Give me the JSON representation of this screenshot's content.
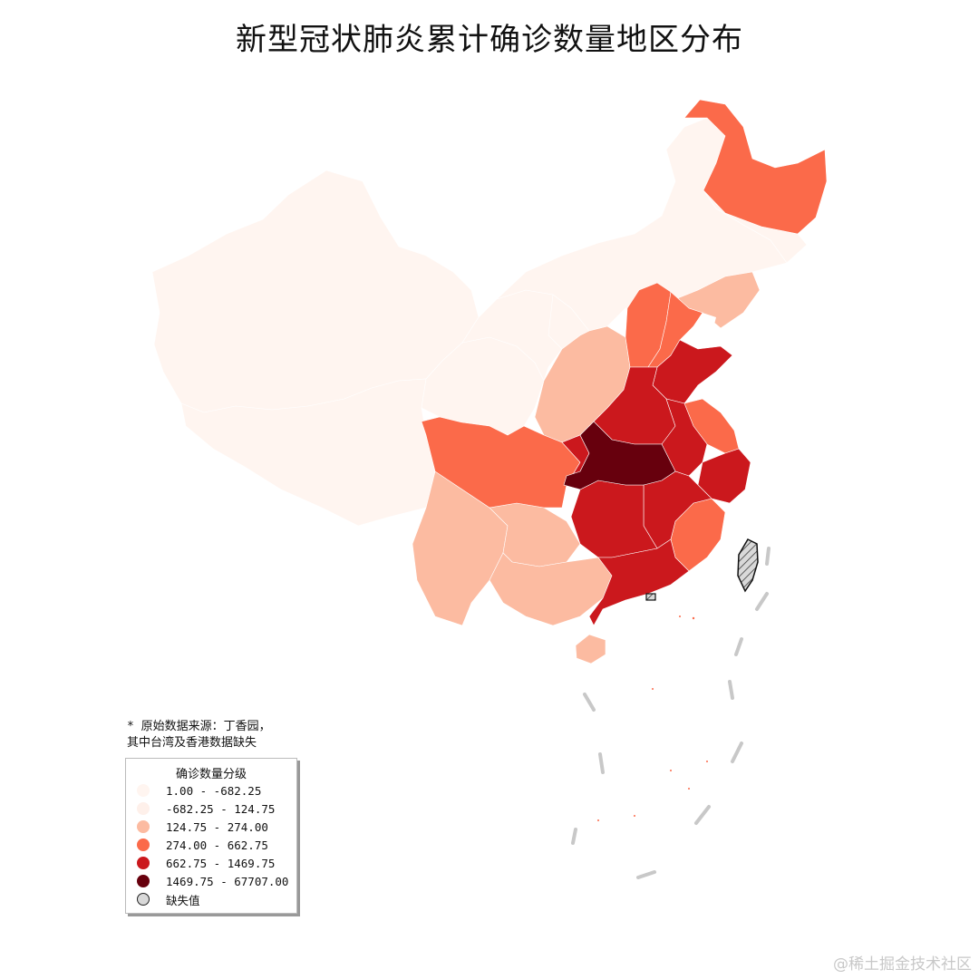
{
  "title": "新型冠状肺炎累计确诊数量地区分布",
  "note": {
    "line1": "* 原始数据来源：丁香园，",
    "line2": "其中台湾及香港数据缺失"
  },
  "legend": {
    "title": "确诊数量分级",
    "items": [
      {
        "label": "1.00 - -682.25",
        "color": "#fff5f0"
      },
      {
        "label": "-682.25 - 124.75",
        "color": "#fef0ea"
      },
      {
        "label": "124.75 - 274.00",
        "color": "#fcbba1"
      },
      {
        "label": "274.00 - 662.75",
        "color": "#fb6a4a"
      },
      {
        "label": "662.75 - 1469.75",
        "color": "#cb181d"
      },
      {
        "label": "1469.75 - 67707.00",
        "color": "#67000d"
      },
      {
        "label": "缺失值",
        "color": "#d9d9d9"
      }
    ]
  },
  "colors": {
    "c1": "#fff5f0",
    "c2": "#fcbba1",
    "c3": "#fb6a4a",
    "c4": "#cb181d",
    "c5": "#67000d",
    "missing": "#d9d9d9",
    "dash": "#c8c8c8"
  },
  "watermark": "@稀土掘金技术社区"
}
